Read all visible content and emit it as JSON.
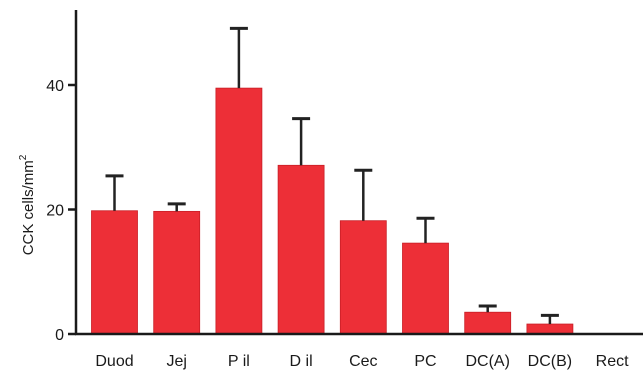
{
  "chart_data": {
    "type": "bar",
    "title": "",
    "xlabel": "",
    "ylabel": "CCK cells/mm",
    "ylabel_superscript": "2",
    "categories": [
      "Duod",
      "Jej",
      "P il",
      "D il",
      "Cec",
      "PC",
      "DC(A)",
      "DC(B)",
      "Rect"
    ],
    "values": [
      19.8,
      19.7,
      39.5,
      27.1,
      18.2,
      14.6,
      3.5,
      1.6,
      0
    ],
    "errors": [
      5.6,
      1.2,
      9.6,
      7.5,
      8.1,
      4.0,
      1.0,
      1.4,
      0
    ],
    "yticks": [
      0,
      20,
      40
    ],
    "ylim": [
      0,
      52
    ],
    "grid": false,
    "legend": "none",
    "colors": {
      "bar": "#ed2f37",
      "error_bar": "#222222",
      "axis": "#1a1a1a"
    }
  }
}
